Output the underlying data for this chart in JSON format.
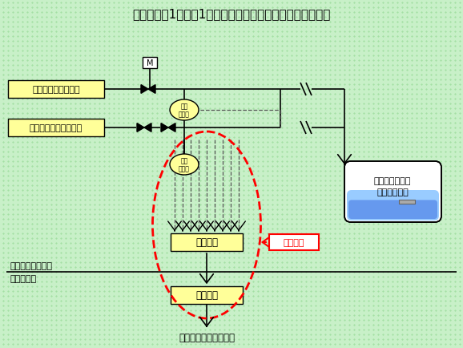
{
  "title": "伊方発電所1号機　1次系弁の漏えい監視用温度測定概要図",
  "bg_color": "#c8f0c8",
  "dot_color": "#90d890",
  "label_余熱": "余熱除去系出口弁等",
  "label_ループ": "ループドレンライン等",
  "label_格納1": "格納容器冷却材",
  "label_格納2": "ドレンタンク",
  "label_送信": "送信器盤",
  "label_受信": "受信器盤",
  "label_中央": "中央制御室（信号）等",
  "label_温度": "温度\n検出器",
  "label_当該": "当該箇所",
  "label_原子炉": "原子炉格納容器内",
  "label_管理": "管理区域外",
  "label_M": "M",
  "font": "IPAGothic"
}
